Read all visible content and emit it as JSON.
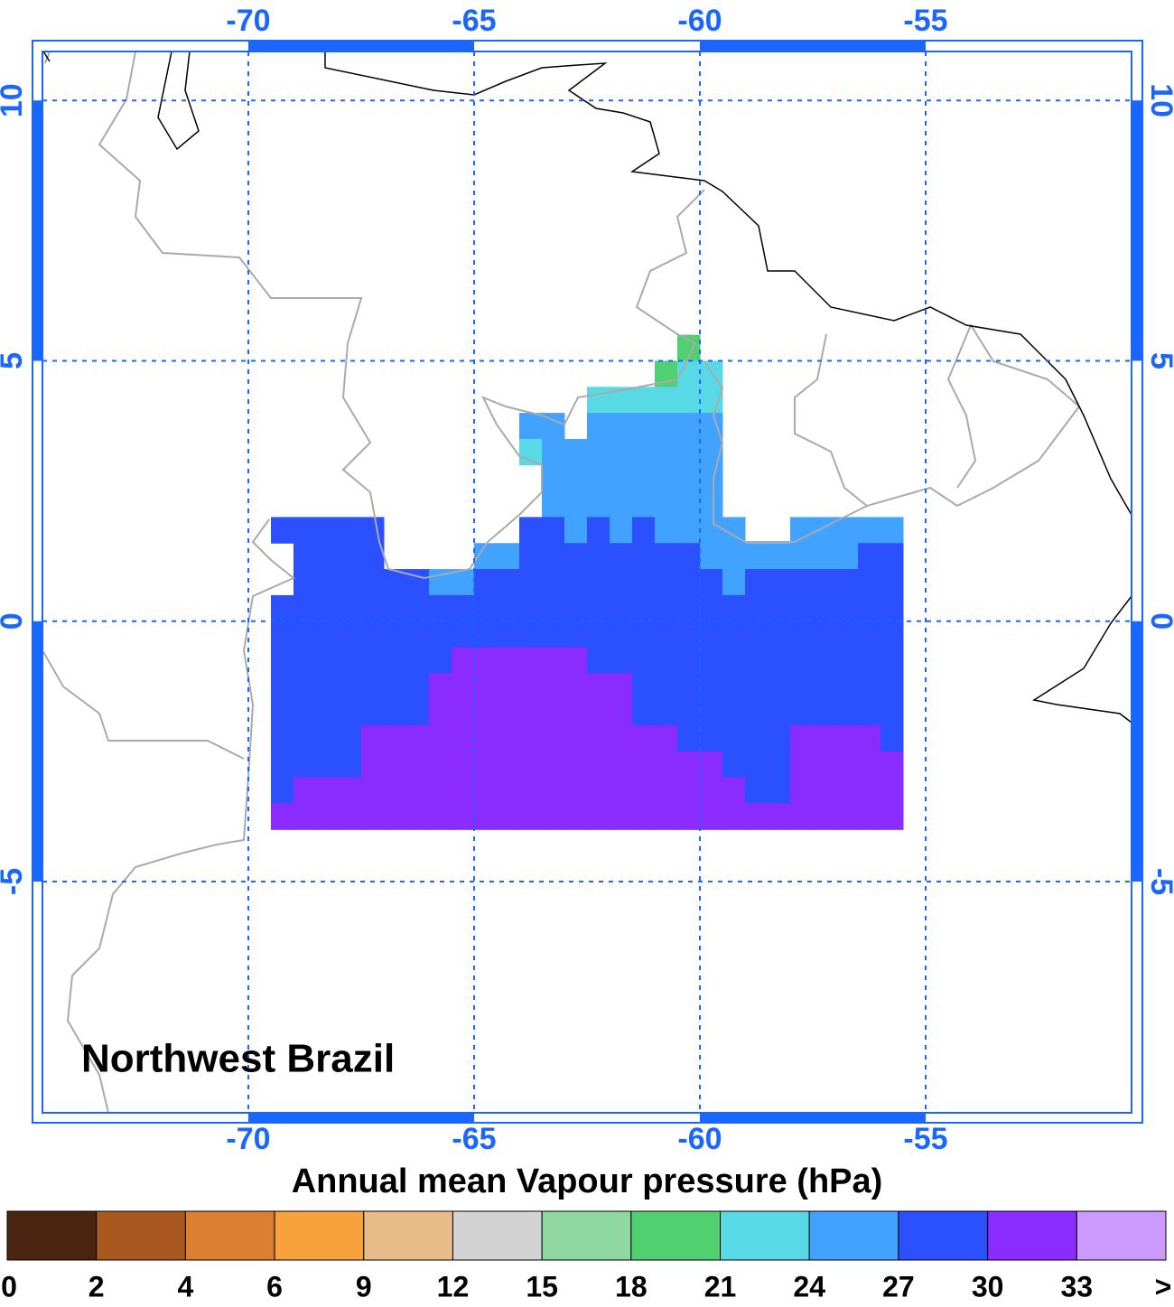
{
  "map": {
    "region": "Northwest Brazil",
    "colorbar_title": "Annual mean Vapour pressure (hPa)",
    "xlim": [
      -74.56,
      -50.44
    ],
    "ylim": [
      -9.44,
      10.94
    ],
    "xticks": [
      -70,
      -65,
      -60,
      -55
    ],
    "yticks": [
      10,
      5,
      0,
      -5
    ],
    "levels": [
      0,
      2,
      4,
      6,
      9,
      12,
      15,
      18,
      21,
      24,
      27,
      30,
      33
    ],
    "overflow_label": ">",
    "colors": [
      "#4a2410",
      "#a9581f",
      "#da8030",
      "#f7a23c",
      "#e9bb88",
      "#d3d3d3",
      "#8fd8a2",
      "#50d070",
      "#58dae6",
      "#41a2ff",
      "#2b50ff",
      "#8a2cff",
      "#cc99ff"
    ],
    "grid": {
      "lons": [
        -69.5,
        -69,
        -68.5,
        -68,
        -67.5,
        -67,
        -66.5,
        -66,
        -65.5,
        -65,
        -64.5,
        -64,
        -63.5,
        -63,
        -62.5,
        -62,
        -61.5,
        -61,
        -60.5,
        -60,
        -59.5,
        -59,
        -58.5,
        -58,
        -57.5,
        -57,
        -56.5,
        -56
      ],
      "lats": [
        5.5,
        5,
        4.5,
        4,
        3.5,
        3,
        2.5,
        2,
        1.5,
        1,
        0.5,
        0,
        -0.5,
        -1,
        -1.5,
        -2,
        -2.5,
        -3,
        -3.5
      ],
      "values": [
        [
          null,
          null,
          null,
          null,
          null,
          null,
          null,
          null,
          null,
          null,
          null,
          null,
          null,
          null,
          null,
          null,
          null,
          null,
          19.5,
          null,
          null,
          null,
          null,
          null,
          null,
          null,
          null,
          null
        ],
        [
          null,
          null,
          null,
          null,
          null,
          null,
          null,
          null,
          null,
          null,
          null,
          null,
          null,
          null,
          null,
          null,
          null,
          19.5,
          22.5,
          22.5,
          null,
          null,
          null,
          null,
          null,
          null,
          null,
          null
        ],
        [
          null,
          null,
          null,
          null,
          null,
          null,
          null,
          null,
          null,
          null,
          null,
          null,
          null,
          null,
          22.5,
          22.5,
          22.5,
          22.5,
          22.5,
          22.5,
          null,
          null,
          null,
          null,
          null,
          null,
          null,
          null
        ],
        [
          null,
          null,
          null,
          null,
          null,
          null,
          null,
          null,
          null,
          null,
          null,
          25.5,
          25.5,
          null,
          25.5,
          25.5,
          25.5,
          25.5,
          25.5,
          25.5,
          null,
          null,
          null,
          null,
          null,
          null,
          null,
          null
        ],
        [
          null,
          null,
          null,
          null,
          null,
          null,
          null,
          null,
          null,
          null,
          null,
          22.5,
          25.5,
          25.5,
          25.5,
          25.5,
          25.5,
          25.5,
          25.5,
          25.5,
          null,
          null,
          null,
          null,
          null,
          null,
          null,
          null
        ],
        [
          null,
          null,
          null,
          null,
          null,
          null,
          null,
          null,
          null,
          null,
          null,
          null,
          25.5,
          25.5,
          25.5,
          25.5,
          25.5,
          25.5,
          25.5,
          25.5,
          null,
          null,
          null,
          null,
          null,
          null,
          null,
          null
        ],
        [
          null,
          null,
          null,
          null,
          null,
          null,
          null,
          null,
          null,
          null,
          null,
          null,
          25.5,
          25.5,
          25.5,
          25.5,
          25.5,
          25.5,
          25.5,
          25.5,
          null,
          null,
          null,
          null,
          null,
          null,
          null,
          null
        ],
        [
          28.5,
          28.5,
          28.5,
          28.5,
          28.5,
          null,
          null,
          null,
          null,
          null,
          null,
          28.5,
          28.5,
          25.5,
          28.5,
          25.5,
          28.5,
          25.5,
          25.5,
          25.5,
          25.5,
          null,
          null,
          25.5,
          25.5,
          25.5,
          25.5,
          25.5
        ],
        [
          null,
          28.5,
          28.5,
          28.5,
          28.5,
          null,
          null,
          null,
          null,
          25.5,
          25.5,
          28.5,
          28.5,
          28.5,
          28.5,
          28.5,
          28.5,
          28.5,
          28.5,
          25.5,
          25.5,
          25.5,
          25.5,
          25.5,
          25.5,
          25.5,
          28.5,
          28.5
        ],
        [
          null,
          28.5,
          28.5,
          28.5,
          28.5,
          28.5,
          28.5,
          25.5,
          25.5,
          28.5,
          28.5,
          28.5,
          28.5,
          28.5,
          28.5,
          28.5,
          28.5,
          28.5,
          28.5,
          28.5,
          25.5,
          28.5,
          28.5,
          28.5,
          28.5,
          28.5,
          28.5,
          28.5
        ],
        [
          28.5,
          28.5,
          28.5,
          28.5,
          28.5,
          28.5,
          28.5,
          28.5,
          28.5,
          28.5,
          28.5,
          28.5,
          28.5,
          28.5,
          28.5,
          28.5,
          28.5,
          28.5,
          28.5,
          28.5,
          28.5,
          28.5,
          28.5,
          28.5,
          28.5,
          28.5,
          28.5,
          28.5
        ],
        [
          28.5,
          28.5,
          28.5,
          28.5,
          28.5,
          28.5,
          28.5,
          28.5,
          28.5,
          28.5,
          28.5,
          28.5,
          28.5,
          28.5,
          28.5,
          28.5,
          28.5,
          28.5,
          28.5,
          28.5,
          28.5,
          28.5,
          28.5,
          28.5,
          28.5,
          28.5,
          28.5,
          28.5
        ],
        [
          28.5,
          28.5,
          28.5,
          28.5,
          28.5,
          28.5,
          28.5,
          28.5,
          31.5,
          31.5,
          31.5,
          31.5,
          31.5,
          31.5,
          28.5,
          28.5,
          28.5,
          28.5,
          28.5,
          28.5,
          28.5,
          28.5,
          28.5,
          28.5,
          28.5,
          28.5,
          28.5,
          28.5
        ],
        [
          28.5,
          28.5,
          28.5,
          28.5,
          28.5,
          28.5,
          28.5,
          31.5,
          31.5,
          31.5,
          31.5,
          31.5,
          31.5,
          31.5,
          31.5,
          31.5,
          28.5,
          28.5,
          28.5,
          28.5,
          28.5,
          28.5,
          28.5,
          28.5,
          28.5,
          28.5,
          28.5,
          28.5
        ],
        [
          28.5,
          28.5,
          28.5,
          28.5,
          28.5,
          28.5,
          28.5,
          31.5,
          31.5,
          31.5,
          31.5,
          31.5,
          31.5,
          31.5,
          31.5,
          31.5,
          28.5,
          28.5,
          28.5,
          28.5,
          28.5,
          28.5,
          28.5,
          28.5,
          28.5,
          28.5,
          28.5,
          28.5
        ],
        [
          28.5,
          28.5,
          28.5,
          28.5,
          31.5,
          31.5,
          31.5,
          31.5,
          31.5,
          31.5,
          31.5,
          31.5,
          31.5,
          31.5,
          31.5,
          31.5,
          31.5,
          31.5,
          28.5,
          28.5,
          28.5,
          28.5,
          28.5,
          31.5,
          31.5,
          31.5,
          31.5,
          28.5
        ],
        [
          28.5,
          28.5,
          28.5,
          28.5,
          31.5,
          31.5,
          31.5,
          31.5,
          31.5,
          31.5,
          31.5,
          31.5,
          31.5,
          31.5,
          31.5,
          31.5,
          31.5,
          31.5,
          31.5,
          31.5,
          28.5,
          28.5,
          28.5,
          31.5,
          31.5,
          31.5,
          31.5,
          31.5
        ],
        [
          28.5,
          31.5,
          31.5,
          31.5,
          31.5,
          31.5,
          31.5,
          31.5,
          31.5,
          31.5,
          31.5,
          31.5,
          31.5,
          31.5,
          31.5,
          31.5,
          31.5,
          31.5,
          31.5,
          31.5,
          31.5,
          28.5,
          28.5,
          31.5,
          31.5,
          31.5,
          31.5,
          31.5
        ],
        [
          31.5,
          31.5,
          31.5,
          31.5,
          31.5,
          31.5,
          31.5,
          31.5,
          31.5,
          31.5,
          31.5,
          31.5,
          31.5,
          31.5,
          31.5,
          31.5,
          31.5,
          31.5,
          31.5,
          31.5,
          31.5,
          31.5,
          31.5,
          31.5,
          31.5,
          31.5,
          31.5,
          31.5
        ]
      ]
    }
  }
}
